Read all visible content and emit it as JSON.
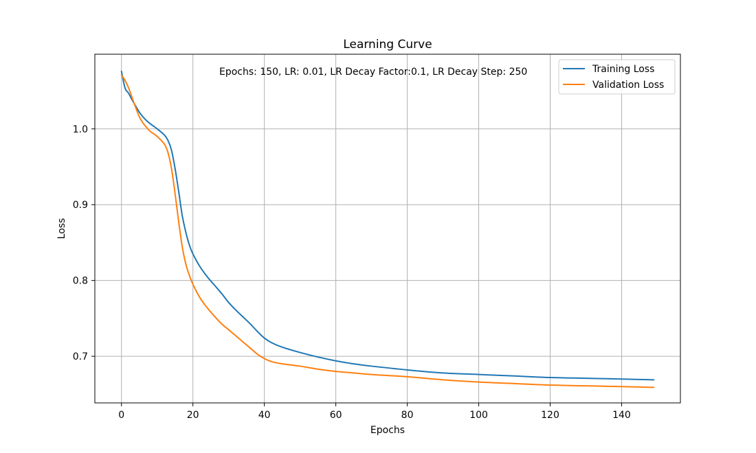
{
  "chart_data": {
    "type": "line",
    "title": "Learning Curve",
    "xlabel": "Epochs",
    "ylabel": "Loss",
    "xlim": [
      -7.45,
      156.45
    ],
    "ylim": [
      0.6385,
      1.0985
    ],
    "xticks": [
      0,
      20,
      40,
      60,
      80,
      100,
      120,
      140
    ],
    "yticks": [
      0.7,
      0.8,
      0.9,
      1.0
    ],
    "ytick_labels": [
      "0.7",
      "0.8",
      "0.9",
      "1.0"
    ],
    "grid": true,
    "legend_position": "top-right",
    "annotation": "Epochs: 150, LR: 0.01, LR Decay Factor:0.1, LR Decay Step: 250",
    "series": [
      {
        "name": "Training Loss",
        "color": "#1f77b4",
        "x": [
          0,
          1,
          2,
          3,
          4,
          5,
          6,
          7,
          8,
          10,
          12,
          13,
          14,
          15,
          16,
          17,
          18,
          19,
          20,
          22,
          24,
          26,
          28,
          30,
          32,
          34,
          36,
          38,
          40,
          42,
          45,
          50,
          55,
          60,
          65,
          70,
          80,
          90,
          100,
          110,
          120,
          130,
          140,
          149
        ],
        "y": [
          1.076,
          1.054,
          1.047,
          1.038,
          1.03,
          1.022,
          1.016,
          1.011,
          1.007,
          1.0,
          0.992,
          0.985,
          0.972,
          0.948,
          0.918,
          0.886,
          0.864,
          0.847,
          0.835,
          0.818,
          0.805,
          0.794,
          0.783,
          0.771,
          0.761,
          0.752,
          0.743,
          0.733,
          0.724,
          0.718,
          0.712,
          0.705,
          0.699,
          0.694,
          0.69,
          0.687,
          0.682,
          0.678,
          0.676,
          0.674,
          0.672,
          0.671,
          0.67,
          0.669
        ]
      },
      {
        "name": "Validation Loss",
        "color": "#ff7f0e",
        "x": [
          0,
          1,
          2,
          3,
          4,
          5,
          6,
          7,
          8,
          10,
          12,
          13,
          14,
          15,
          16,
          17,
          18,
          19,
          20,
          22,
          24,
          26,
          28,
          30,
          32,
          34,
          36,
          38,
          40,
          42,
          45,
          50,
          55,
          60,
          65,
          70,
          80,
          90,
          100,
          110,
          120,
          130,
          140,
          149
        ],
        "y": [
          1.071,
          1.064,
          1.054,
          1.041,
          1.028,
          1.016,
          1.008,
          1.002,
          0.997,
          0.99,
          0.98,
          0.969,
          0.948,
          0.915,
          0.878,
          0.845,
          0.822,
          0.807,
          0.795,
          0.777,
          0.764,
          0.753,
          0.743,
          0.735,
          0.727,
          0.719,
          0.711,
          0.703,
          0.697,
          0.693,
          0.69,
          0.687,
          0.683,
          0.68,
          0.678,
          0.676,
          0.673,
          0.669,
          0.666,
          0.664,
          0.662,
          0.661,
          0.66,
          0.659
        ]
      }
    ]
  }
}
